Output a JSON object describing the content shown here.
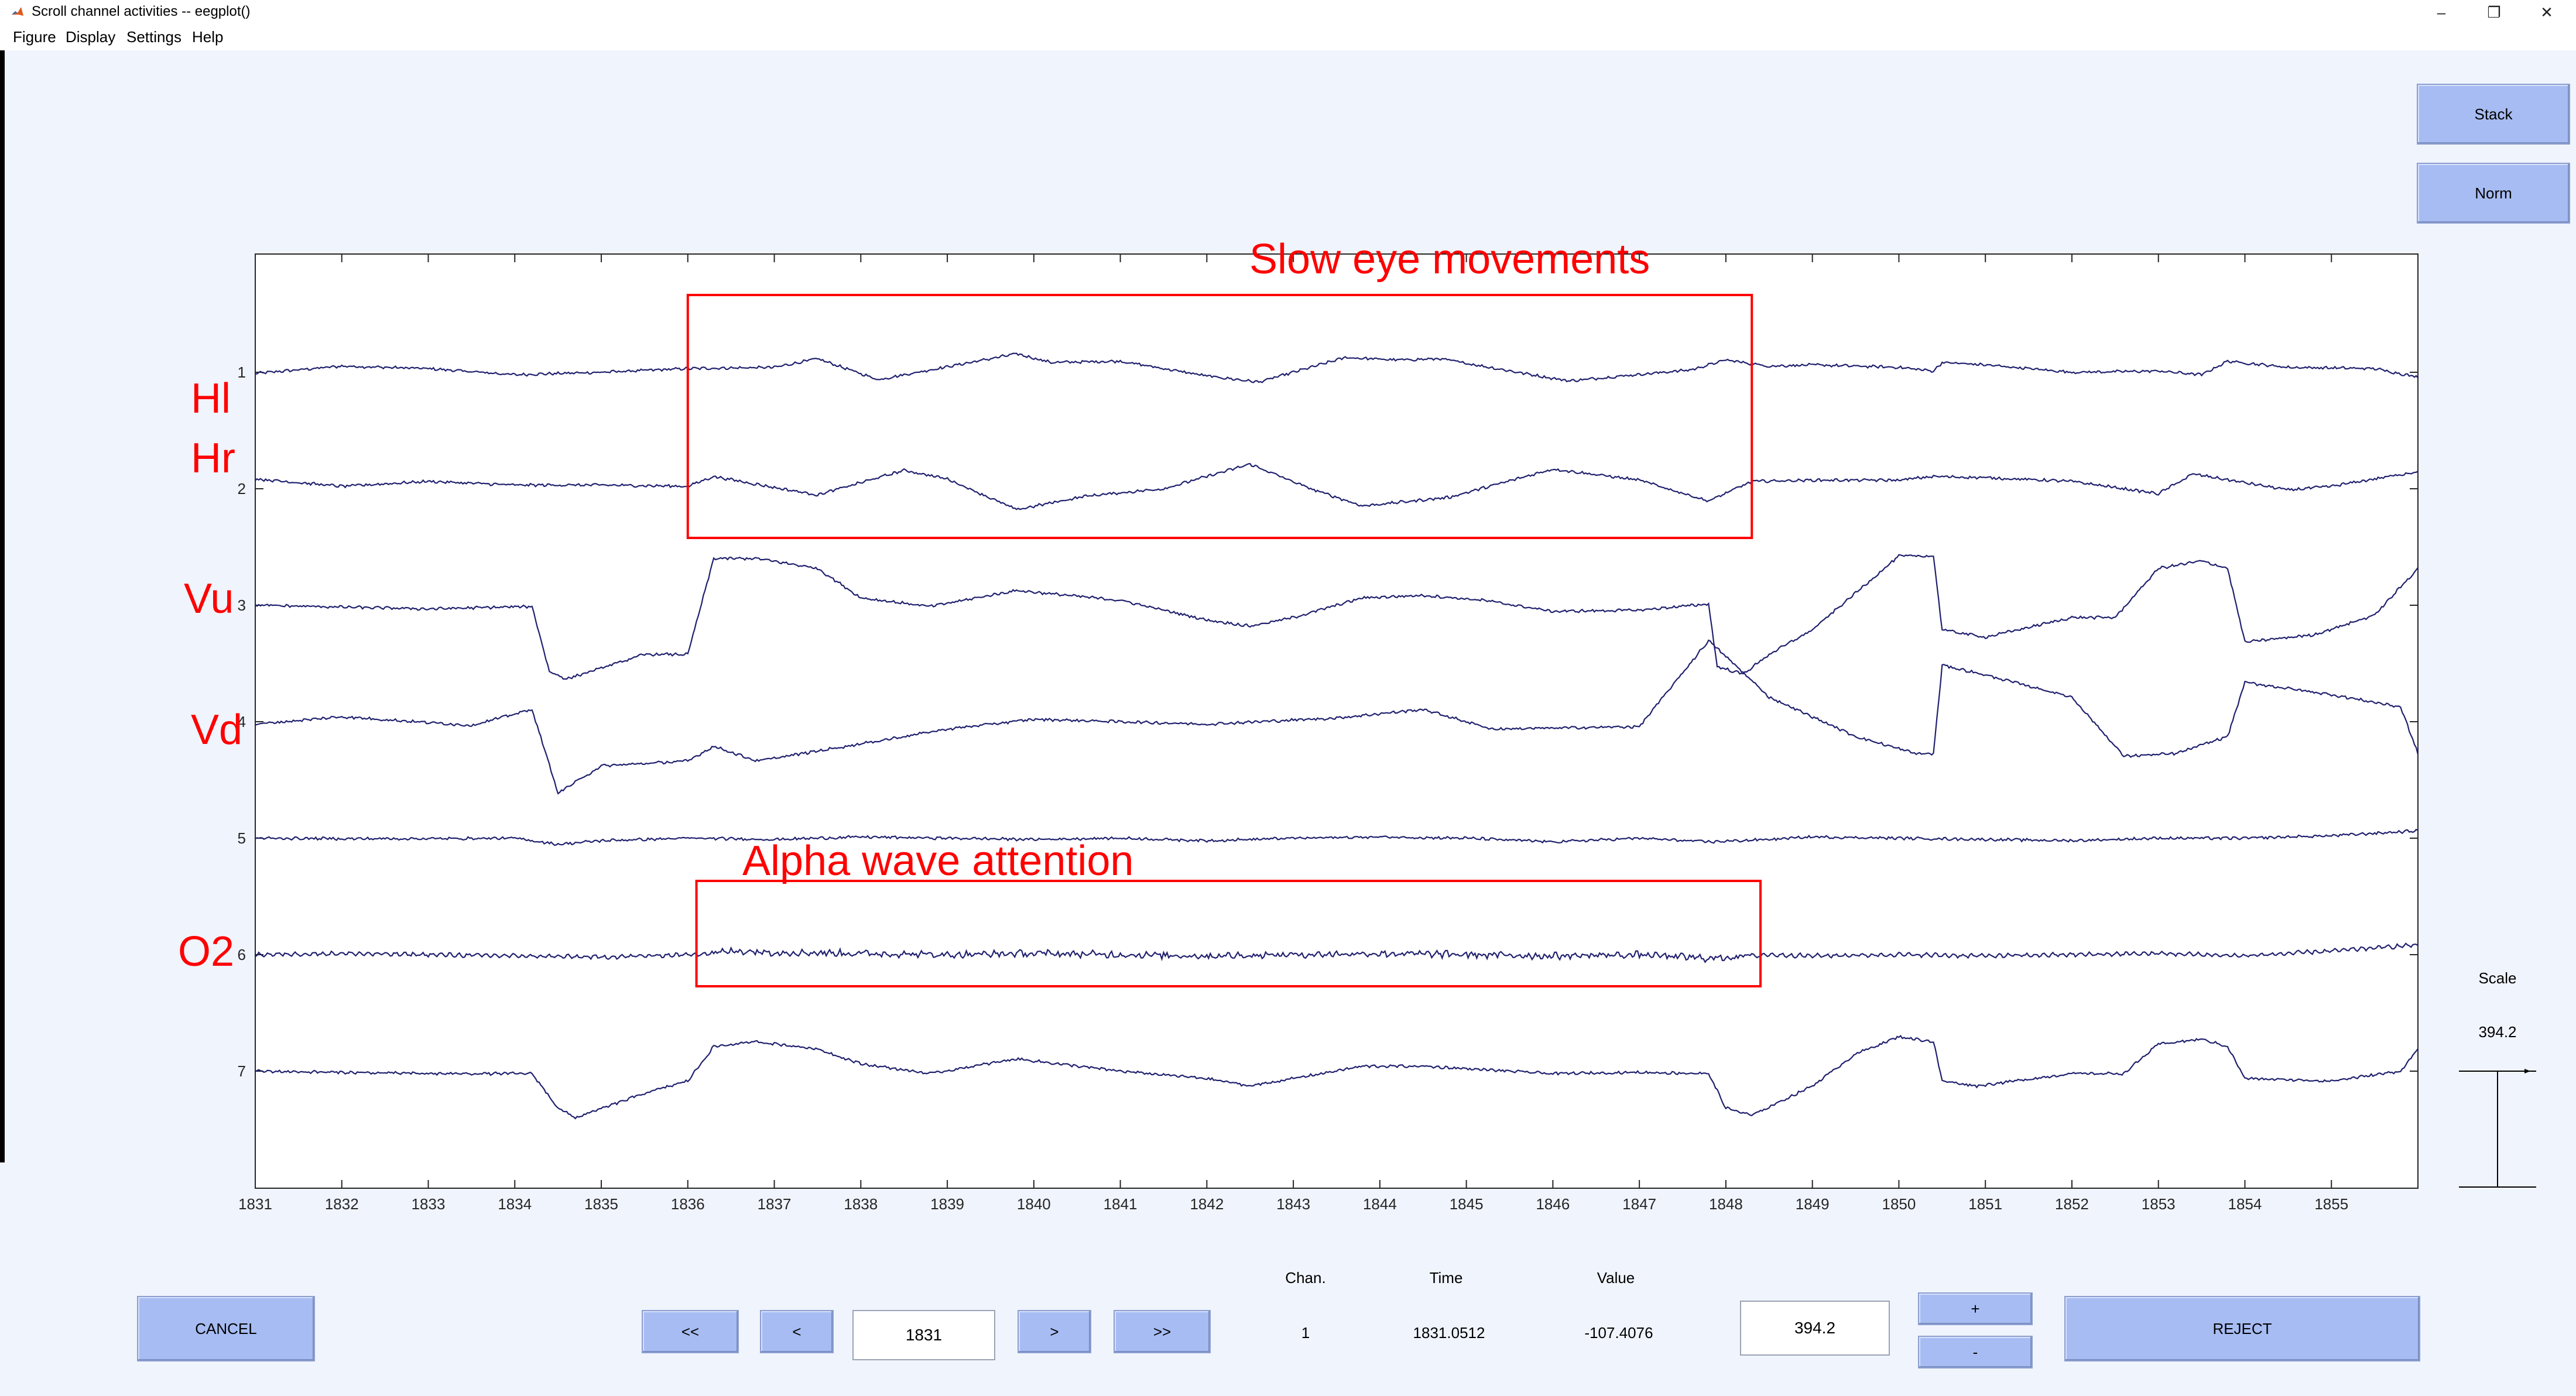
{
  "window": {
    "title": "Scroll channel activities -- eegplot()",
    "minimize_glyph": "–",
    "restore_glyph": "❐",
    "close_glyph": "✕"
  },
  "menu": [
    "Figure",
    "Display",
    "Settings",
    "Help"
  ],
  "buttons": {
    "stack": "Stack",
    "norm": "Norm",
    "cancel": "CANCEL",
    "first": "<<",
    "prev": "<",
    "next": ">",
    "last": ">>",
    "plus": "+",
    "minus": "-",
    "reject": "REJECT"
  },
  "navigation": {
    "start_time": "1831"
  },
  "readout": {
    "chan_label": "Chan.",
    "time_label": "Time",
    "value_label": "Value",
    "chan_value": "1",
    "time_value": "1831.0512",
    "value_value": "-107.4076"
  },
  "scale": {
    "label": "Scale",
    "value": "394.2",
    "input_value": "394.2"
  },
  "chart_data": {
    "type": "line",
    "title": "",
    "xlabel": "",
    "ylabel": "",
    "x_ticks": [
      1831,
      1832,
      1833,
      1834,
      1835,
      1836,
      1837,
      1838,
      1839,
      1840,
      1841,
      1842,
      1843,
      1844,
      1845,
      1846,
      1847,
      1848,
      1849,
      1850,
      1851,
      1852,
      1853,
      1854,
      1855
    ],
    "xlim": [
      1831,
      1856
    ],
    "channel_ticks": [
      "1",
      "2",
      "3",
      "4",
      "5",
      "6",
      "7"
    ],
    "grid": false,
    "series": [
      {
        "name": "1",
        "points": [
          [
            1831,
            -5
          ],
          [
            1832,
            25
          ],
          [
            1833,
            15
          ],
          [
            1834,
            -10
          ],
          [
            1835,
            0
          ],
          [
            1836,
            15
          ],
          [
            1837,
            20
          ],
          [
            1837.5,
            55
          ],
          [
            1838.2,
            -30
          ],
          [
            1839.8,
            75
          ],
          [
            1840.2,
            40
          ],
          [
            1841,
            45
          ],
          [
            1842,
            -15
          ],
          [
            1842.6,
            -40
          ],
          [
            1843.6,
            60
          ],
          [
            1844.2,
            50
          ],
          [
            1844.7,
            55
          ],
          [
            1846,
            -25
          ],
          [
            1846.2,
            -35
          ],
          [
            1846.8,
            -15
          ],
          [
            1847.6,
            10
          ],
          [
            1848,
            50
          ],
          [
            1848.5,
            25
          ],
          [
            1849,
            30
          ],
          [
            1850,
            20
          ],
          [
            1850.4,
            5
          ],
          [
            1850.5,
            40
          ],
          [
            1851,
            30
          ],
          [
            1852,
            0
          ],
          [
            1853,
            5
          ],
          [
            1853.5,
            -10
          ],
          [
            1853.8,
            45
          ],
          [
            1854.5,
            20
          ],
          [
            1855.5,
            15
          ],
          [
            1856,
            -20
          ]
        ]
      },
      {
        "name": "2",
        "points": [
          [
            1831,
            40
          ],
          [
            1832,
            10
          ],
          [
            1833,
            30
          ],
          [
            1834,
            15
          ],
          [
            1835,
            15
          ],
          [
            1836,
            10
          ],
          [
            1836.3,
            50
          ],
          [
            1837,
            5
          ],
          [
            1837.5,
            -25
          ],
          [
            1838.5,
            75
          ],
          [
            1839,
            40
          ],
          [
            1839.8,
            -85
          ],
          [
            1840.6,
            -30
          ],
          [
            1841.5,
            0
          ],
          [
            1842.5,
            100
          ],
          [
            1843.2,
            0
          ],
          [
            1843.8,
            -70
          ],
          [
            1844.8,
            -35
          ],
          [
            1846,
            80
          ],
          [
            1847,
            35
          ],
          [
            1847.8,
            -50
          ],
          [
            1848.3,
            30
          ],
          [
            1849,
            35
          ],
          [
            1850,
            35
          ],
          [
            1850.4,
            50
          ],
          [
            1851,
            45
          ],
          [
            1852,
            30
          ],
          [
            1853,
            -20
          ],
          [
            1853.4,
            60
          ],
          [
            1854.5,
            -5
          ],
          [
            1855,
            10
          ],
          [
            1856,
            70
          ]
        ]
      },
      {
        "name": "3",
        "points": [
          [
            1831,
            0
          ],
          [
            1833,
            -15
          ],
          [
            1834.2,
            -5
          ],
          [
            1834.4,
            -270
          ],
          [
            1834.6,
            -300
          ],
          [
            1835.5,
            -200
          ],
          [
            1836,
            -200
          ],
          [
            1836.3,
            190
          ],
          [
            1836.8,
            190
          ],
          [
            1837.5,
            150
          ],
          [
            1838,
            30
          ],
          [
            1838.8,
            -5
          ],
          [
            1839.8,
            60
          ],
          [
            1841,
            20
          ],
          [
            1842,
            -60
          ],
          [
            1842.5,
            -85
          ],
          [
            1843,
            -50
          ],
          [
            1843.8,
            30
          ],
          [
            1844.5,
            40
          ],
          [
            1845.2,
            20
          ],
          [
            1846,
            -25
          ],
          [
            1847,
            -20
          ],
          [
            1847.8,
            5
          ],
          [
            1847.9,
            -250
          ],
          [
            1848.2,
            -280
          ],
          [
            1848.5,
            -200
          ],
          [
            1849,
            -100
          ],
          [
            1849.5,
            50
          ],
          [
            1850,
            200
          ],
          [
            1850.4,
            200
          ],
          [
            1850.5,
            -100
          ],
          [
            1851,
            -130
          ],
          [
            1852,
            -50
          ],
          [
            1852.5,
            -50
          ],
          [
            1853,
            150
          ],
          [
            1853.5,
            180
          ],
          [
            1853.8,
            150
          ],
          [
            1854,
            -150
          ],
          [
            1854.8,
            -120
          ],
          [
            1855.5,
            -40
          ],
          [
            1856,
            150
          ]
        ]
      },
      {
        "name": "4",
        "points": [
          [
            1831,
            -10
          ],
          [
            1832,
            20
          ],
          [
            1833.5,
            -15
          ],
          [
            1834.2,
            50
          ],
          [
            1834.5,
            -290
          ],
          [
            1835,
            -180
          ],
          [
            1836,
            -160
          ],
          [
            1836.3,
            -100
          ],
          [
            1836.8,
            -160
          ],
          [
            1838,
            -90
          ],
          [
            1839,
            -30
          ],
          [
            1840,
            10
          ],
          [
            1841,
            0
          ],
          [
            1842,
            -10
          ],
          [
            1843.5,
            15
          ],
          [
            1844.5,
            50
          ],
          [
            1845.3,
            -30
          ],
          [
            1847,
            -20
          ],
          [
            1847.8,
            330
          ],
          [
            1848.2,
            200
          ],
          [
            1848.5,
            100
          ],
          [
            1849.5,
            -60
          ],
          [
            1850.2,
            -130
          ],
          [
            1850.4,
            -130
          ],
          [
            1850.5,
            230
          ],
          [
            1851,
            190
          ],
          [
            1852,
            100
          ],
          [
            1852.6,
            -140
          ],
          [
            1853.2,
            -130
          ],
          [
            1853.8,
            -60
          ],
          [
            1854,
            160
          ],
          [
            1855,
            110
          ],
          [
            1855.8,
            60
          ],
          [
            1856,
            -130
          ]
        ]
      },
      {
        "name": "5",
        "points": [
          [
            1831,
            0
          ],
          [
            1832,
            -2
          ],
          [
            1833,
            -2
          ],
          [
            1834,
            0
          ],
          [
            1834.5,
            -25
          ],
          [
            1835,
            -10
          ],
          [
            1836,
            0
          ],
          [
            1837,
            -5
          ],
          [
            1838,
            5
          ],
          [
            1839,
            0
          ],
          [
            1840,
            -5
          ],
          [
            1841,
            0
          ],
          [
            1842,
            -10
          ],
          [
            1843,
            0
          ],
          [
            1844,
            5
          ],
          [
            1845,
            0
          ],
          [
            1846,
            -15
          ],
          [
            1847,
            0
          ],
          [
            1847.8,
            -15
          ],
          [
            1848.5,
            -5
          ],
          [
            1849,
            5
          ],
          [
            1850,
            0
          ],
          [
            1851,
            -5
          ],
          [
            1852,
            -10
          ],
          [
            1853,
            0
          ],
          [
            1854,
            0
          ],
          [
            1855,
            10
          ],
          [
            1856,
            30
          ]
        ]
      },
      {
        "name": "6",
        "points": [
          [
            1831,
            0
          ],
          [
            1832,
            5
          ],
          [
            1833,
            0
          ],
          [
            1834,
            -5
          ],
          [
            1835,
            -10
          ],
          [
            1836,
            0
          ],
          [
            1836.6,
            15
          ],
          [
            1837,
            10
          ],
          [
            1838,
            5
          ],
          [
            1839,
            0
          ],
          [
            1840,
            5
          ],
          [
            1841,
            0
          ],
          [
            1842,
            -5
          ],
          [
            1843,
            0
          ],
          [
            1844,
            5
          ],
          [
            1845,
            0
          ],
          [
            1846,
            -5
          ],
          [
            1847,
            0
          ],
          [
            1847.8,
            -15
          ],
          [
            1848.5,
            0
          ],
          [
            1849,
            -5
          ],
          [
            1850,
            0
          ],
          [
            1851,
            -5
          ],
          [
            1852,
            0
          ],
          [
            1853,
            5
          ],
          [
            1854,
            -5
          ],
          [
            1855,
            15
          ],
          [
            1856,
            40
          ]
        ]
      },
      {
        "name": "7",
        "points": [
          [
            1831,
            0
          ],
          [
            1833,
            -10
          ],
          [
            1834.2,
            -10
          ],
          [
            1834.5,
            -150
          ],
          [
            1834.7,
            -190
          ],
          [
            1835.5,
            -90
          ],
          [
            1836,
            -40
          ],
          [
            1836.3,
            100
          ],
          [
            1836.8,
            120
          ],
          [
            1837.5,
            90
          ],
          [
            1838,
            30
          ],
          [
            1838.8,
            -10
          ],
          [
            1839.8,
            50
          ],
          [
            1841,
            0
          ],
          [
            1842,
            -30
          ],
          [
            1842.5,
            -60
          ],
          [
            1843,
            -30
          ],
          [
            1843.8,
            20
          ],
          [
            1844.5,
            20
          ],
          [
            1846,
            -10
          ],
          [
            1847,
            -5
          ],
          [
            1847.8,
            -10
          ],
          [
            1848,
            -150
          ],
          [
            1848.3,
            -180
          ],
          [
            1849,
            -60
          ],
          [
            1849.5,
            70
          ],
          [
            1850,
            140
          ],
          [
            1850.4,
            120
          ],
          [
            1850.5,
            -40
          ],
          [
            1850.9,
            -60
          ],
          [
            1852,
            -10
          ],
          [
            1852.6,
            -10
          ],
          [
            1853,
            110
          ],
          [
            1853.5,
            130
          ],
          [
            1853.8,
            100
          ],
          [
            1854,
            -30
          ],
          [
            1855,
            -40
          ],
          [
            1855.8,
            0
          ],
          [
            1856,
            90
          ]
        ]
      }
    ],
    "annotations": [
      {
        "text": "Slow eye movements",
        "time_range": [
          1836,
          1848.3
        ],
        "channels": [
          "1",
          "2"
        ]
      },
      {
        "text": "Alpha wave attention",
        "time_range": [
          1836.1,
          1848.4
        ],
        "channels": [
          "6"
        ]
      }
    ],
    "channel_notes": [
      {
        "channel": "1",
        "text": "Hl"
      },
      {
        "channel": "2",
        "text": "Hr"
      },
      {
        "channel": "3",
        "text": "Vu"
      },
      {
        "channel": "4",
        "text": "Vd"
      },
      {
        "channel": "6",
        "text": "O2"
      }
    ]
  }
}
